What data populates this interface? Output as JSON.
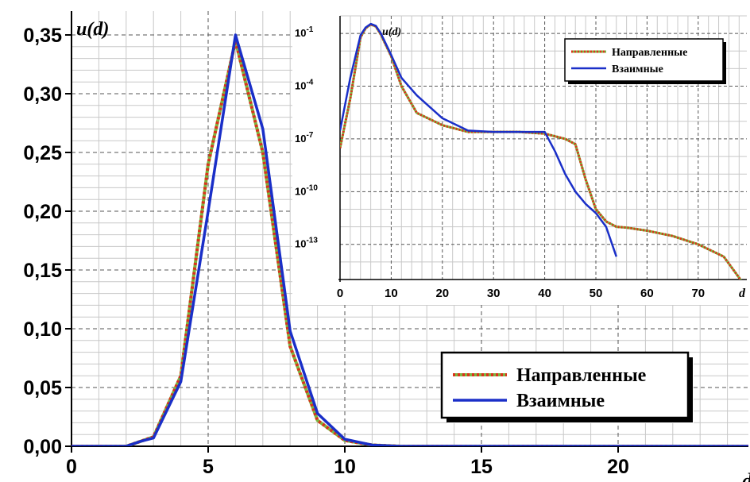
{
  "chart_data": [
    {
      "type": "line",
      "ylabel": "u(d)",
      "xlabel": "d",
      "xlim": [
        0,
        25
      ],
      "ylim": [
        0,
        0.36
      ],
      "xticks": [
        "0",
        "5",
        "10",
        "15",
        "20"
      ],
      "xtick_values": [
        0,
        5,
        10,
        15,
        20
      ],
      "yticks": [
        "0,00",
        "0,05",
        "0,10",
        "0,15",
        "0,20",
        "0,25",
        "0,30",
        "0,35"
      ],
      "ytick_values": [
        0,
        0.05,
        0.1,
        0.15,
        0.2,
        0.25,
        0.3,
        0.35
      ],
      "grid": true,
      "legend_position": "bottom-right",
      "series": [
        {
          "name": "Направленные",
          "color": "#d9341b",
          "color2": "#7db540",
          "style": "dotted",
          "x": [
            0,
            1,
            2,
            2.5,
            3,
            4,
            5,
            6,
            7,
            8,
            9,
            10,
            11,
            12,
            13,
            25
          ],
          "y": [
            0,
            0,
            0,
            0.004,
            0.008,
            0.06,
            0.24,
            0.345,
            0.25,
            0.085,
            0.022,
            0.005,
            0.001,
            0,
            0,
            0
          ]
        },
        {
          "name": "Взаимные",
          "color": "#1a2fc8",
          "style": "solid",
          "x": [
            0,
            1,
            2,
            2.5,
            3,
            4,
            5,
            6,
            7,
            8,
            9,
            10,
            11,
            12,
            13,
            25
          ],
          "y": [
            0,
            0,
            0,
            0.004,
            0.007,
            0.055,
            0.2,
            0.35,
            0.27,
            0.098,
            0.028,
            0.006,
            0.001,
            0,
            0,
            0
          ]
        }
      ]
    },
    {
      "type": "line",
      "ylabel": "u(d)",
      "xlabel": "d",
      "yscale": "log",
      "xlim": [
        0,
        79
      ],
      "ylim": [
        1e-15,
        1
      ],
      "xticks": [
        "0",
        "10",
        "20",
        "30",
        "40",
        "50",
        "60",
        "70"
      ],
      "xtick_values": [
        0,
        10,
        20,
        30,
        40,
        50,
        60,
        70
      ],
      "ytick_values": [
        -13,
        -10,
        -7,
        -4,
        -1
      ],
      "ytick_base": "10",
      "ytick_exponents": [
        "-13",
        "-10",
        "-7",
        "-4",
        "-1"
      ],
      "grid": true,
      "legend_position": "top-right",
      "series": [
        {
          "name": "Направленные",
          "color": "#d9341b",
          "color2": "#7db540",
          "style": "dotted",
          "x": [
            0,
            2,
            4,
            5,
            6,
            7,
            8,
            10,
            12,
            15,
            20,
            25,
            30,
            35,
            40,
            44,
            46,
            48,
            50,
            52,
            54,
            56,
            60,
            65,
            70,
            75,
            79
          ],
          "y": [
            3e-08,
            2e-05,
            0.06,
            0.2,
            0.33,
            0.25,
            0.085,
            0.005,
            0.0001,
            3e-06,
            6e-07,
            2.5e-07,
            2.5e-07,
            2.5e-07,
            2e-07,
            1e-07,
            5e-08,
            5e-10,
            1e-11,
            2e-12,
            1e-12,
            9e-13,
            6e-13,
            3e-13,
            1e-13,
            2e-14,
            5e-16
          ]
        },
        {
          "name": "Взаимные",
          "color": "#1a2fc8",
          "style": "solid",
          "x": [
            0,
            2,
            4,
            5,
            6,
            7,
            8,
            10,
            12,
            15,
            20,
            25,
            30,
            35,
            40,
            42,
            44,
            46,
            48,
            50,
            52,
            54
          ],
          "y": [
            3e-07,
            0.0003,
            0.08,
            0.22,
            0.35,
            0.27,
            0.098,
            0.006,
            0.0003,
            3e-05,
            1.5e-06,
            3e-07,
            2.5e-07,
            2.5e-07,
            2.5e-07,
            2e-08,
            1e-09,
            1e-10,
            2e-11,
            6e-12,
            1e-12,
            2e-14
          ]
        }
      ]
    }
  ]
}
